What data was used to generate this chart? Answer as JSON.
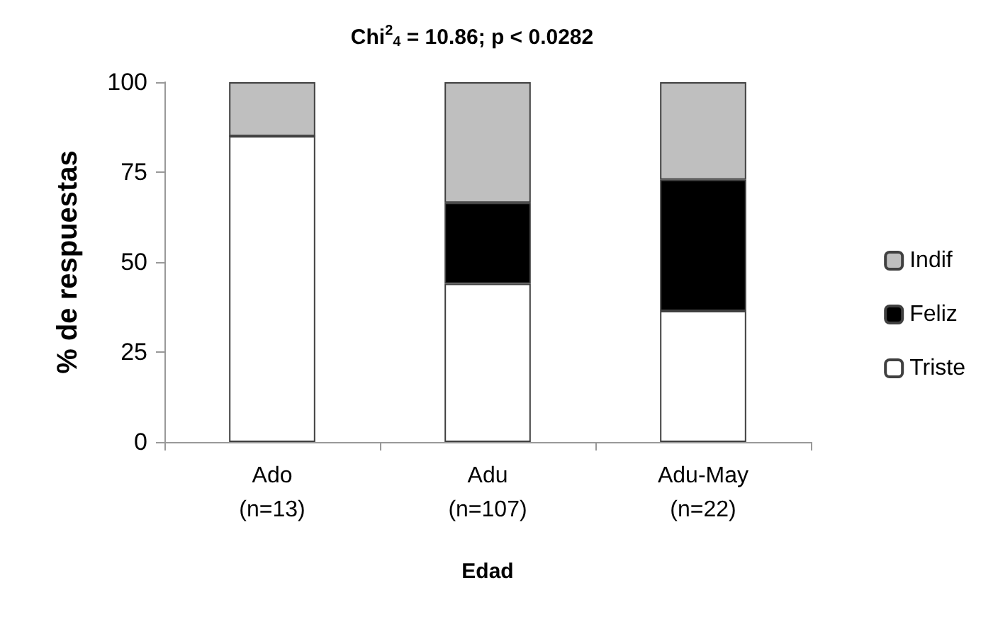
{
  "chart_data": {
    "type": "bar",
    "title": "Chi$^{2}$$_{4}$ = 10.86; p < 0.0282",
    "xlabel": "Edad",
    "ylabel": "% de respuestas",
    "categories": [
      "Ado\n(n=13)",
      "Adu\n(n=107)",
      "Adu-May\n(n=22)"
    ],
    "stacked": true,
    "series": [
      {
        "name": "Triste",
        "color": "#ffffff",
        "values": [
          85,
          44,
          36.4
        ]
      },
      {
        "name": "Feliz",
        "color": "#000000",
        "values": [
          0,
          22.5,
          36.5
        ]
      },
      {
        "name": "Indif",
        "color": "#bfbfbf",
        "values": [
          15,
          33.5,
          27.1
        ]
      }
    ],
    "ylim": [
      0,
      100
    ],
    "yticks": [
      0,
      25,
      50,
      75,
      100
    ],
    "grid": false,
    "legend": "right"
  }
}
